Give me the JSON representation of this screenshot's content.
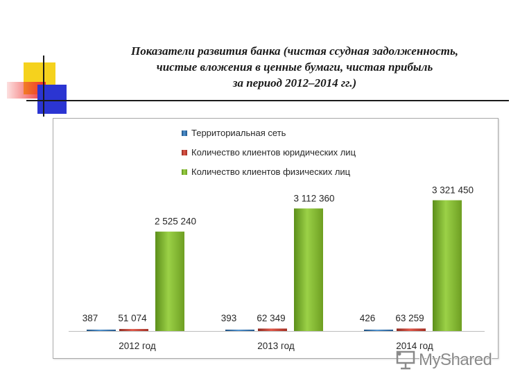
{
  "title": {
    "line1": "Показатели развития банка (чистая ссудная задолженность,",
    "line2": "чистые вложения в ценные бумаги, чистая прибыль",
    "line3": "за период 2012–2014 гг.)"
  },
  "colors": {
    "deco_yellow": "#f5d21d",
    "deco_red": "#ee2e2e",
    "deco_blue": "#2b35d2",
    "series_blue": "#2e75b6",
    "series_red": "#c0392b",
    "series_green": "#7ab02c"
  },
  "chart_data": {
    "type": "bar",
    "categories": [
      "2012 год",
      "2013 год",
      "2014 год"
    ],
    "series": [
      {
        "name": "Территориальная сеть",
        "values": [
          387,
          393,
          426
        ],
        "labels": [
          "387",
          "393",
          "426"
        ],
        "color": "#2e75b6"
      },
      {
        "name": "Количество клиентов юридических лиц",
        "values": [
          51074,
          62349,
          63259
        ],
        "labels": [
          "51 074",
          "62 349",
          "63 259"
        ],
        "color": "#c0392b"
      },
      {
        "name": "Количество клиентов физических лиц",
        "values": [
          2525240,
          3112360,
          3321450
        ],
        "labels": [
          "2 525 240",
          "3 112 360",
          "3 321 450"
        ],
        "color": "#7ab02c"
      }
    ],
    "legend_position": "top-left",
    "grid": false
  },
  "watermark": {
    "text": "MyShared",
    "icon": "presentation-board-icon"
  }
}
